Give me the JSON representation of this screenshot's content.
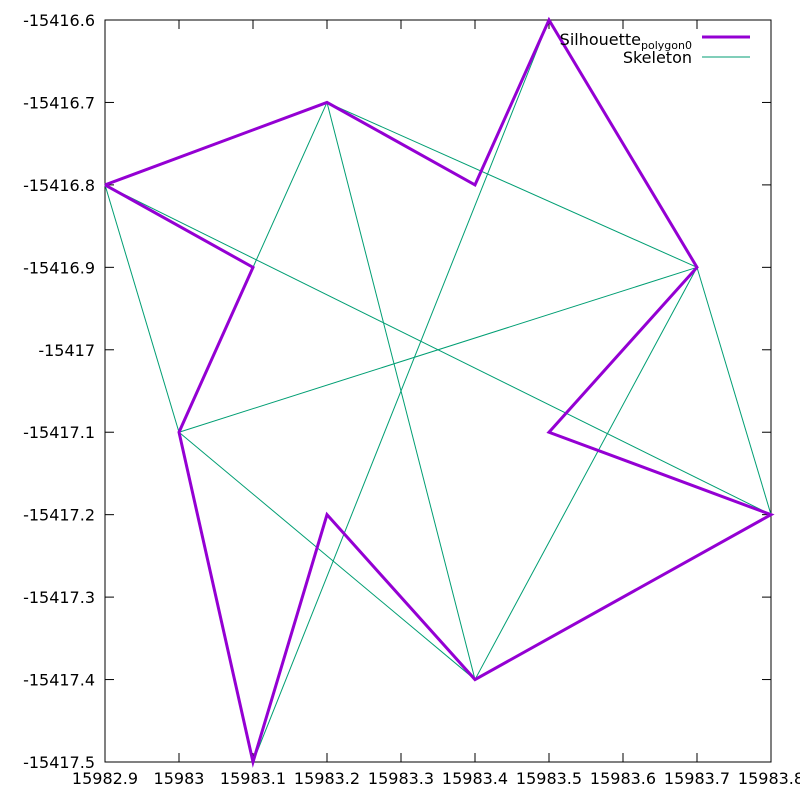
{
  "chart_data": {
    "type": "line",
    "title": "",
    "xlabel": "",
    "ylabel": "",
    "xlim": [
      15982.9,
      15983.8
    ],
    "ylim": [
      -15417.5,
      -15416.6
    ],
    "grid": false,
    "legend_position": "top-right",
    "x_ticks": [
      15982.9,
      15983,
      15983.1,
      15983.2,
      15983.3,
      15983.4,
      15983.5,
      15983.6,
      15983.7,
      15983.8
    ],
    "x_tick_labels": [
      "15982.9",
      "15983",
      "15983.1",
      "15983.2",
      "15983.3",
      "15983.4",
      "15983.5",
      "15983.6",
      "15983.7",
      "15983.8"
    ],
    "y_ticks": [
      -15416.6,
      -15416.7,
      -15416.8,
      -15416.9,
      -15417,
      -15417.1,
      -15417.2,
      -15417.3,
      -15417.4,
      -15417.5
    ],
    "y_tick_labels": [
      "-15416.6",
      "-15416.7",
      "-15416.8",
      "-15416.9",
      "-15417",
      "-15417.1",
      "-15417.2",
      "-15417.3",
      "-15417.4",
      "-15417.5"
    ],
    "series": [
      {
        "name": "Silhouette_polygon0",
        "legend_label_main": "Silhouette",
        "legend_label_sub": "polygon0",
        "color": "#9400d3",
        "style": "polyline",
        "points": [
          [
            15982.9,
            -15416.8
          ],
          [
            15983.2,
            -15416.7
          ],
          [
            15983.4,
            -15416.8
          ],
          [
            15983.5,
            -15416.6
          ],
          [
            15983.7,
            -15416.9
          ],
          [
            15983.5,
            -15417.1
          ],
          [
            15983.8,
            -15417.2
          ],
          [
            15983.4,
            -15417.4
          ],
          [
            15983.2,
            -15417.2
          ],
          [
            15983.1,
            -15417.5
          ],
          [
            15983.0,
            -15417.1
          ],
          [
            15983.1,
            -15416.9
          ],
          [
            15982.9,
            -15416.8
          ]
        ]
      },
      {
        "name": "Skeleton",
        "legend_label_main": "Skeleton",
        "color": "#009e73",
        "style": "segments",
        "segments": [
          [
            [
              15982.9,
              -15416.8
            ],
            [
              15983.2,
              -15416.7
            ]
          ],
          [
            [
              15983.2,
              -15416.7
            ],
            [
              15983.7,
              -15416.9
            ]
          ],
          [
            [
              15983.5,
              -15416.6
            ],
            [
              15983.7,
              -15416.9
            ]
          ],
          [
            [
              15983.7,
              -15416.9
            ],
            [
              15983.8,
              -15417.2
            ]
          ],
          [
            [
              15983.8,
              -15417.2
            ],
            [
              15983.4,
              -15417.4
            ]
          ],
          [
            [
              15983.4,
              -15417.4
            ],
            [
              15983.0,
              -15417.1
            ]
          ],
          [
            [
              15983.0,
              -15417.1
            ],
            [
              15983.1,
              -15417.5
            ]
          ],
          [
            [
              15983.0,
              -15417.1
            ],
            [
              15982.9,
              -15416.8
            ]
          ],
          [
            [
              15983.2,
              -15416.7
            ],
            [
              15983.0,
              -15417.1
            ]
          ],
          [
            [
              15983.2,
              -15416.7
            ],
            [
              15983.4,
              -15417.4
            ]
          ],
          [
            [
              15983.4,
              -15417.4
            ],
            [
              15983.7,
              -15416.9
            ]
          ],
          [
            [
              15983.7,
              -15416.9
            ],
            [
              15983.0,
              -15417.1
            ]
          ],
          [
            [
              15983.5,
              -15416.6
            ],
            [
              15983.1,
              -15417.5
            ]
          ],
          [
            [
              15982.9,
              -15416.8
            ],
            [
              15983.8,
              -15417.2
            ]
          ]
        ]
      }
    ]
  }
}
